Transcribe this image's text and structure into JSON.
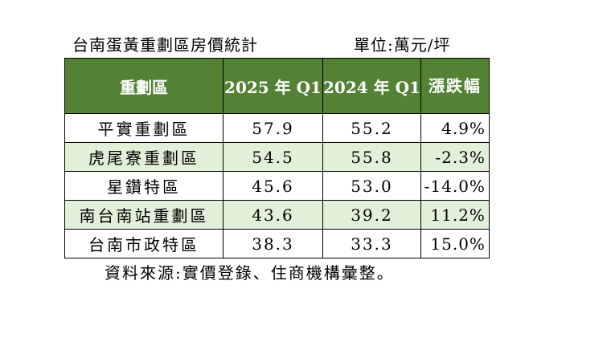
{
  "title": "台南蛋黃重劃區房價統計",
  "unit": "單位:萬元/坪",
  "table": {
    "headers": [
      "重劃區",
      "2025 年 Q1",
      "2024 年 Q1",
      "漲跌幅"
    ],
    "rows": [
      [
        "平實重劃區",
        "57.9",
        "55.2",
        "4.9%"
      ],
      [
        "虎尾寮重劃區",
        "54.5",
        "55.8",
        "-2.3%"
      ],
      [
        "星鑽特區",
        "45.6",
        "53.0",
        "-14.0%"
      ],
      [
        "南台南站重劃區",
        "43.6",
        "39.2",
        "11.2%"
      ],
      [
        "台南市政特區",
        "38.3",
        "33.3",
        "15.0%"
      ]
    ]
  },
  "source": "資料來源:實價登錄、住商機構彙整。",
  "colors": {
    "header_bg": "#548235",
    "header_text": "#ffffff",
    "shade_bg": "#e2efd9"
  }
}
